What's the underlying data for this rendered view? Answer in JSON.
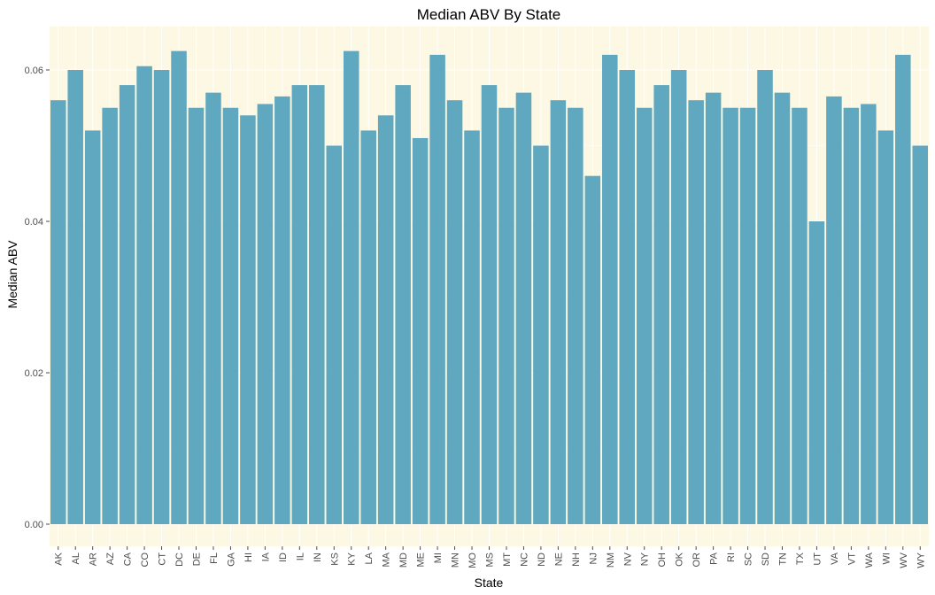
{
  "chart_data": {
    "type": "bar",
    "title": "Median ABV By State",
    "xlabel": "State",
    "ylabel": "Median ABV",
    "ylim": [
      0,
      0.065
    ],
    "yticks": [
      "0.00",
      "0.02",
      "0.04",
      "0.06"
    ],
    "ytick_values": [
      0,
      0.02,
      0.04,
      0.06
    ],
    "categories": [
      "AK",
      "AL",
      "AR",
      "AZ",
      "CA",
      "CO",
      "CT",
      "DC",
      "DE",
      "FL",
      "GA",
      "HI",
      "IA",
      "ID",
      "IL",
      "IN",
      "KS",
      "KY",
      "LA",
      "MA",
      "MD",
      "ME",
      "MI",
      "MN",
      "MO",
      "MS",
      "MT",
      "NC",
      "ND",
      "NE",
      "NH",
      "NJ",
      "NM",
      "NV",
      "NY",
      "OH",
      "OK",
      "OR",
      "PA",
      "RI",
      "SC",
      "SD",
      "TN",
      "TX",
      "UT",
      "VA",
      "VT",
      "WA",
      "WI",
      "WV",
      "WY"
    ],
    "values": [
      0.056,
      0.06,
      0.052,
      0.055,
      0.058,
      0.0605,
      0.06,
      0.0625,
      0.055,
      0.057,
      0.055,
      0.054,
      0.0555,
      0.0565,
      0.058,
      0.058,
      0.05,
      0.0625,
      0.052,
      0.054,
      0.058,
      0.051,
      0.062,
      0.056,
      0.052,
      0.058,
      0.055,
      0.057,
      0.05,
      0.056,
      0.055,
      0.046,
      0.062,
      0.06,
      0.055,
      0.058,
      0.06,
      0.056,
      0.057,
      0.055,
      0.055,
      0.06,
      0.057,
      0.055,
      0.04,
      0.0565,
      0.055,
      0.0555,
      0.052,
      0.062,
      0.05
    ],
    "bar_color": "#5fa8bf",
    "panel_background": "#fcf8e3",
    "grid": true
  }
}
